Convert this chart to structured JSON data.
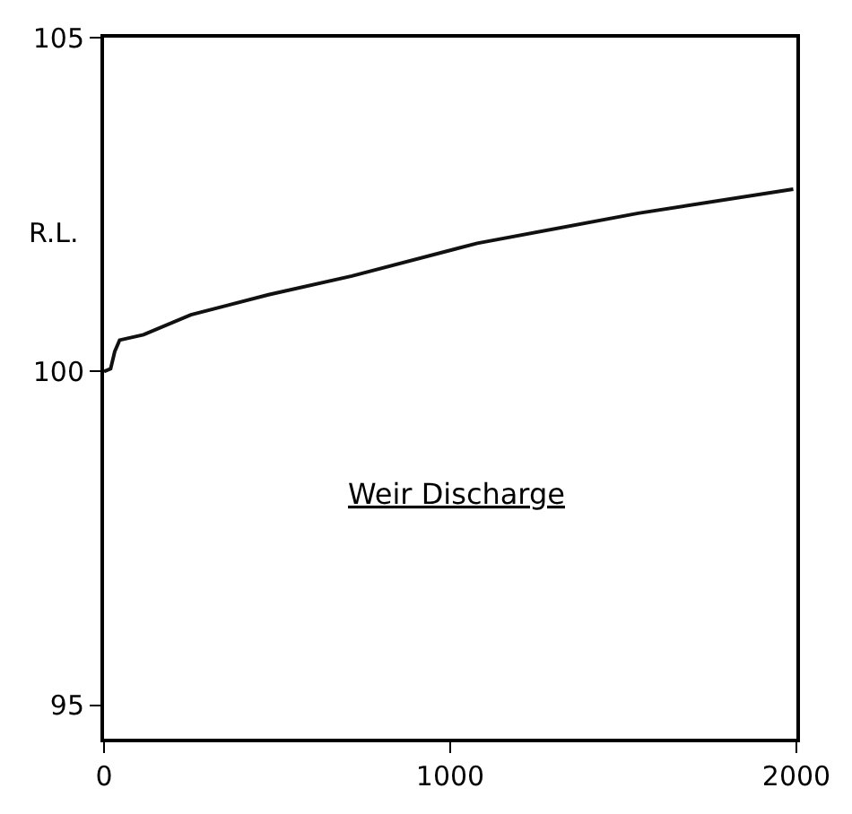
{
  "chart_data": {
    "type": "line",
    "ylabel": "R.L.",
    "annotations": [
      "Weir Discharge"
    ],
    "x": [
      0,
      19,
      31,
      45,
      114,
      251,
      475,
      716,
      1078,
      1543,
      1991
    ],
    "series": [
      {
        "color": "#111111",
        "values": [
          100.0,
          100.04,
          100.3,
          100.47,
          100.55,
          100.85,
          101.15,
          101.43,
          101.92,
          102.37,
          102.73
        ]
      }
    ],
    "xlim": [
      0,
      2000
    ],
    "xticks": [
      0,
      1000,
      2000
    ],
    "ylim": [
      94.5,
      105
    ],
    "yticks": [
      95,
      100,
      105
    ],
    "marker": "none",
    "line_style": "solid"
  }
}
